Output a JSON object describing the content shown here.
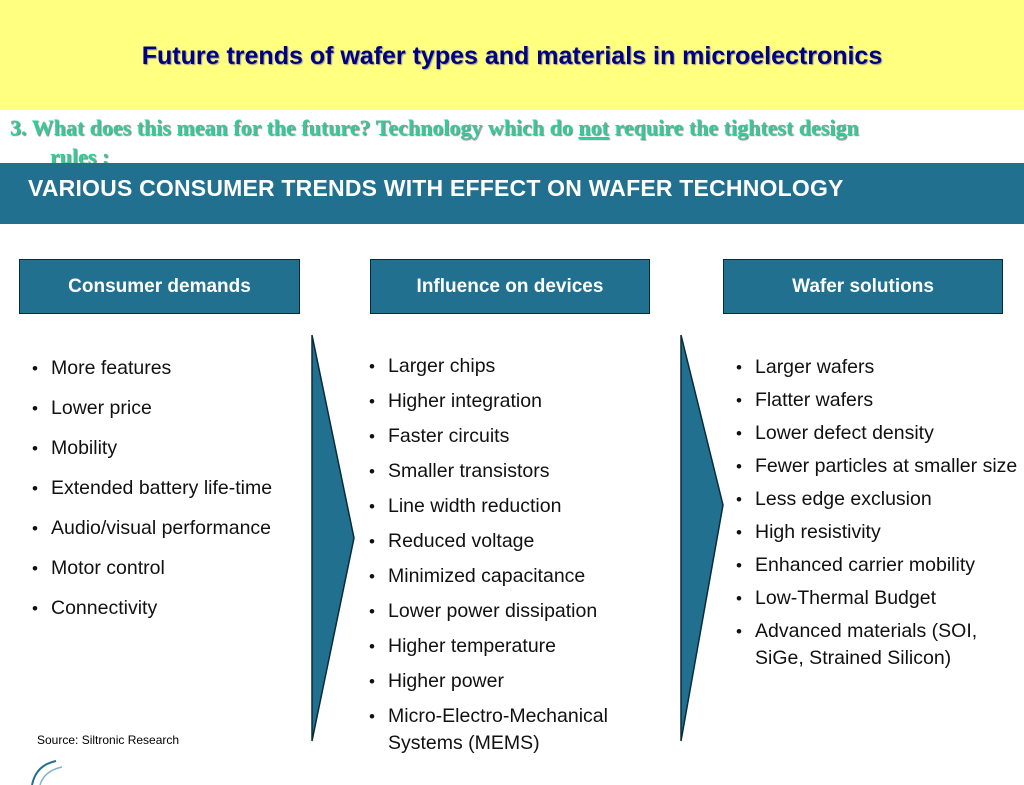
{
  "slide": {
    "title": "Future trends of wafer types and materials in microelectronics",
    "subtitle_pre": "3. What does this mean for the future? Technology which do ",
    "subtitle_emph": "not",
    "subtitle_post": " require the tightest design",
    "subtitle_line2": "rules ;"
  },
  "banner": {
    "text": "VARIOUS CONSUMER TRENDS WITH EFFECT ON WAFER TECHNOLOGY"
  },
  "columns": [
    {
      "header": "Consumer demands",
      "items": [
        "More features",
        "Lower price",
        "Mobility",
        "Extended battery life-time",
        "Audio/visual performance",
        "Motor control",
        "Connectivity"
      ]
    },
    {
      "header": "Influence on devices",
      "items": [
        "Larger chips",
        "Higher integration",
        "Faster circuits",
        "Smaller transistors",
        "Line width reduction",
        "Reduced voltage",
        "Minimized capacitance",
        "Lower power dissipation",
        "Higher temperature",
        "Higher power",
        "Micro-Electro-Mechanical Systems (MEMS)"
      ]
    },
    {
      "header": "Wafer solutions",
      "items": [
        "Larger wafers",
        "Flatter wafers",
        "Lower defect density",
        "Fewer particles at smaller size",
        "Less edge exclusion",
        "High resistivity",
        "Enhanced carrier mobility",
        "Low-Thermal Budget",
        "Advanced materials (SOI, SiGe, Strained Silicon)"
      ]
    }
  ],
  "source": "Source: Siltronic Research",
  "colors": {
    "title_band": "#ffff80",
    "title_text": "#000080",
    "subtitle_text": "#33cc99",
    "banner": "#21708f"
  }
}
